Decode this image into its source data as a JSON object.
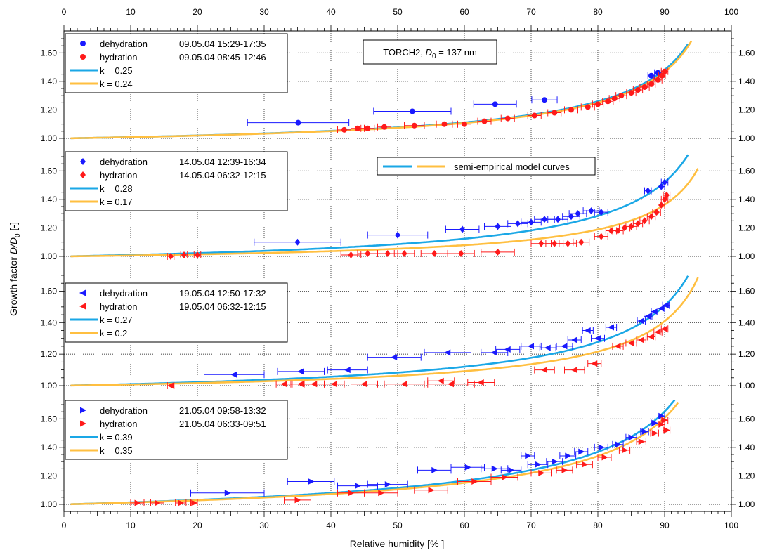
{
  "chart_data": {
    "type": "scatter",
    "xlabel": "Relative humidity [% ]",
    "ylabel_main": "Growth factor ",
    "ylabel_ratio": "D/D",
    "ylabel_sub": "0",
    "ylabel_unit": " [-]",
    "xlim": [
      0,
      100
    ],
    "x_ticks": [
      "0",
      "10",
      "20",
      "30",
      "40",
      "50",
      "60",
      "70",
      "80",
      "90",
      "100"
    ],
    "y_ticks": [
      "1.00",
      "1.20",
      "1.40",
      "1.60"
    ],
    "grid": true,
    "annotation": {
      "prefix": "TORCH2, ",
      "var": "D",
      "sub": "0",
      "suffix": " = 137 nm"
    },
    "model_legend_label": "semi-empirical model curves",
    "colors": {
      "dehydration": "#1a1aff",
      "hydration": "#ff1a1a",
      "curve1": "#1aa7e6",
      "curve2": "#ffbf40"
    },
    "panels": [
      {
        "ylim": [
          1.0,
          1.7
        ],
        "marker": "circle",
        "legend": [
          {
            "label": "dehydration",
            "date": "09.05.04 15:29-17:35"
          },
          {
            "label": "hydration",
            "date": "09.05.04 08:45-12:46"
          },
          {
            "label": "k = 0.25",
            "date": ""
          },
          {
            "label": "k = 0.24",
            "date": ""
          }
        ],
        "curves": [
          {
            "k": 0.25,
            "end_rh": 93.5
          },
          {
            "k": 0.24,
            "end_rh": 94
          }
        ],
        "dehydration": [
          {
            "x": 35.1,
            "y": 1.11,
            "xerr": 7.6
          },
          {
            "x": 52.2,
            "y": 1.19,
            "xerr": 5.8
          },
          {
            "x": 64.6,
            "y": 1.24,
            "xerr": 3.2
          },
          {
            "x": 72.0,
            "y": 1.27,
            "xerr": 1.9
          },
          {
            "x": 88.0,
            "y": 1.44,
            "xerr": 0.5
          },
          {
            "x": 89.0,
            "y": 1.46,
            "xerr": 0.5
          }
        ],
        "hydration": [
          {
            "x": 42.0,
            "y": 1.06,
            "xerr": 1.0
          },
          {
            "x": 44.0,
            "y": 1.07,
            "xerr": 1.0
          },
          {
            "x": 45.5,
            "y": 1.07,
            "xerr": 1.0
          },
          {
            "x": 48.0,
            "y": 1.08,
            "xerr": 1.0
          },
          {
            "x": 52.5,
            "y": 1.09,
            "xerr": 1.5
          },
          {
            "x": 57.0,
            "y": 1.1,
            "xerr": 1.2
          },
          {
            "x": 60.0,
            "y": 1.1,
            "xerr": 1.0
          },
          {
            "x": 63.0,
            "y": 1.12,
            "xerr": 1.0
          },
          {
            "x": 66.5,
            "y": 1.14,
            "xerr": 1.0
          },
          {
            "x": 70.5,
            "y": 1.16,
            "xerr": 1.0
          },
          {
            "x": 73.5,
            "y": 1.18,
            "xerr": 1.0
          },
          {
            "x": 76.0,
            "y": 1.2,
            "xerr": 1.0
          },
          {
            "x": 78.5,
            "y": 1.22,
            "xerr": 1.0
          },
          {
            "x": 80.0,
            "y": 1.24,
            "xerr": 0.8
          },
          {
            "x": 81.5,
            "y": 1.26,
            "xerr": 0.8
          },
          {
            "x": 82.5,
            "y": 1.28,
            "xerr": 0.8
          },
          {
            "x": 83.5,
            "y": 1.3,
            "xerr": 0.8
          },
          {
            "x": 85.0,
            "y": 1.32,
            "xerr": 0.7
          },
          {
            "x": 86.0,
            "y": 1.34,
            "xerr": 0.7
          },
          {
            "x": 87.0,
            "y": 1.36,
            "xerr": 0.7
          },
          {
            "x": 88.0,
            "y": 1.38,
            "xerr": 0.6
          },
          {
            "x": 89.0,
            "y": 1.41,
            "xerr": 0.6
          },
          {
            "x": 89.6,
            "y": 1.44,
            "xerr": 0.5
          },
          {
            "x": 90.0,
            "y": 1.47,
            "xerr": 0.5
          }
        ]
      },
      {
        "ylim": [
          1.0,
          1.7
        ],
        "marker": "diamond",
        "legend": [
          {
            "label": "dehydration",
            "date": "14.05.04 12:39-16:34"
          },
          {
            "label": "hydration",
            "date": "14.05.04 06:32-12:15"
          },
          {
            "label": "k = 0.28",
            "date": ""
          },
          {
            "label": "k = 0.17",
            "date": ""
          }
        ],
        "curves": [
          {
            "k": 0.28,
            "end_rh": 93.5
          },
          {
            "k": 0.17,
            "end_rh": 95
          }
        ],
        "dehydration": [
          {
            "x": 35.0,
            "y": 1.1,
            "xerr": 6.5
          },
          {
            "x": 50.0,
            "y": 1.15,
            "xerr": 4.5
          },
          {
            "x": 59.7,
            "y": 1.19,
            "xerr": 2.5
          },
          {
            "x": 65.0,
            "y": 1.21,
            "xerr": 2.0
          },
          {
            "x": 68.0,
            "y": 1.23,
            "xerr": 1.5
          },
          {
            "x": 70.0,
            "y": 1.24,
            "xerr": 1.5
          },
          {
            "x": 72.0,
            "y": 1.26,
            "xerr": 1.5
          },
          {
            "x": 74.0,
            "y": 1.26,
            "xerr": 1.5
          },
          {
            "x": 76.0,
            "y": 1.28,
            "xerr": 1.3
          },
          {
            "x": 77.0,
            "y": 1.3,
            "xerr": 1.3
          },
          {
            "x": 79.0,
            "y": 1.32,
            "xerr": 1.2
          },
          {
            "x": 80.5,
            "y": 1.31,
            "xerr": 1.0
          },
          {
            "x": 87.5,
            "y": 1.46,
            "xerr": 0.5
          },
          {
            "x": 89.5,
            "y": 1.49,
            "xerr": 0.5
          },
          {
            "x": 90.0,
            "y": 1.52,
            "xerr": 0.5
          }
        ],
        "hydration": [
          {
            "x": 16.0,
            "y": 1.0,
            "xerr": 0.5
          },
          {
            "x": 18.0,
            "y": 1.01,
            "xerr": 0.5
          },
          {
            "x": 20.0,
            "y": 1.01,
            "xerr": 0.5
          },
          {
            "x": 43.0,
            "y": 1.01,
            "xerr": 1.5
          },
          {
            "x": 45.5,
            "y": 1.02,
            "xerr": 1.5
          },
          {
            "x": 48.5,
            "y": 1.02,
            "xerr": 1.5
          },
          {
            "x": 51.0,
            "y": 1.02,
            "xerr": 1.5
          },
          {
            "x": 55.5,
            "y": 1.02,
            "xerr": 2.0
          },
          {
            "x": 59.5,
            "y": 1.02,
            "xerr": 2.0
          },
          {
            "x": 65.0,
            "y": 1.03,
            "xerr": 2.5
          },
          {
            "x": 71.5,
            "y": 1.09,
            "xerr": 1.5
          },
          {
            "x": 73.5,
            "y": 1.09,
            "xerr": 1.3
          },
          {
            "x": 75.5,
            "y": 1.09,
            "xerr": 1.3
          },
          {
            "x": 77.5,
            "y": 1.1,
            "xerr": 1.2
          },
          {
            "x": 80.5,
            "y": 1.14,
            "xerr": 1.0
          },
          {
            "x": 82.0,
            "y": 1.18,
            "xerr": 0.8
          },
          {
            "x": 83.0,
            "y": 1.18,
            "xerr": 0.8
          },
          {
            "x": 84.0,
            "y": 1.2,
            "xerr": 0.8
          },
          {
            "x": 85.0,
            "y": 1.21,
            "xerr": 0.8
          },
          {
            "x": 86.0,
            "y": 1.23,
            "xerr": 0.7
          },
          {
            "x": 87.0,
            "y": 1.25,
            "xerr": 0.7
          },
          {
            "x": 88.0,
            "y": 1.28,
            "xerr": 0.6
          },
          {
            "x": 88.8,
            "y": 1.31,
            "xerr": 0.6
          },
          {
            "x": 89.5,
            "y": 1.36,
            "xerr": 0.5
          },
          {
            "x": 90.0,
            "y": 1.4,
            "xerr": 0.5
          },
          {
            "x": 90.3,
            "y": 1.43,
            "xerr": 0.5
          }
        ]
      },
      {
        "ylim": [
          1.0,
          1.7
        ],
        "marker": "triangle-left",
        "legend": [
          {
            "label": "dehydration",
            "date": "19.05.04 12:50-17:32"
          },
          {
            "label": "hydration",
            "date": "19.05.04 06:32-12:15"
          },
          {
            "label": "k = 0.27",
            "date": ""
          },
          {
            "label": "k = 0.2",
            "date": ""
          }
        ],
        "curves": [
          {
            "k": 0.27,
            "end_rh": 93.5
          },
          {
            "k": 0.2,
            "end_rh": 95
          }
        ],
        "dehydration": [
          {
            "x": 25.5,
            "y": 1.07,
            "xerr": 4.5
          },
          {
            "x": 35.5,
            "y": 1.09,
            "xerr": 3.5
          },
          {
            "x": 42.5,
            "y": 1.1,
            "xerr": 3.0
          },
          {
            "x": 49.5,
            "y": 1.18,
            "xerr": 4.0
          },
          {
            "x": 57.5,
            "y": 1.21,
            "xerr": 3.5
          },
          {
            "x": 64.5,
            "y": 1.21,
            "xerr": 2.0
          },
          {
            "x": 66.5,
            "y": 1.23,
            "xerr": 1.8
          },
          {
            "x": 70.0,
            "y": 1.25,
            "xerr": 1.5
          },
          {
            "x": 72.5,
            "y": 1.24,
            "xerr": 1.2
          },
          {
            "x": 75.0,
            "y": 1.25,
            "xerr": 1.2
          },
          {
            "x": 76.5,
            "y": 1.29,
            "xerr": 1.0
          },
          {
            "x": 78.5,
            "y": 1.35,
            "xerr": 0.8
          },
          {
            "x": 80.0,
            "y": 1.3,
            "xerr": 1.0
          },
          {
            "x": 82.0,
            "y": 1.37,
            "xerr": 0.8
          },
          {
            "x": 86.5,
            "y": 1.41,
            "xerr": 0.6
          },
          {
            "x": 87.5,
            "y": 1.44,
            "xerr": 0.6
          },
          {
            "x": 88.5,
            "y": 1.47,
            "xerr": 0.5
          },
          {
            "x": 89.5,
            "y": 1.49,
            "xerr": 0.5
          },
          {
            "x": 90.2,
            "y": 1.51,
            "xerr": 0.5
          }
        ],
        "hydration": [
          {
            "x": 16.0,
            "y": 1.0,
            "xerr": 0.5
          },
          {
            "x": 33.0,
            "y": 1.01,
            "xerr": 1.2
          },
          {
            "x": 35.5,
            "y": 1.01,
            "xerr": 1.5
          },
          {
            "x": 37.5,
            "y": 1.01,
            "xerr": 1.5
          },
          {
            "x": 40.5,
            "y": 1.01,
            "xerr": 1.5
          },
          {
            "x": 45.0,
            "y": 1.01,
            "xerr": 2.0
          },
          {
            "x": 51.0,
            "y": 1.01,
            "xerr": 3.0
          },
          {
            "x": 58.0,
            "y": 1.01,
            "xerr": 3.5
          },
          {
            "x": 56.5,
            "y": 1.03,
            "xerr": 2.0
          },
          {
            "x": 62.5,
            "y": 1.02,
            "xerr": 2.0
          },
          {
            "x": 72.0,
            "y": 1.1,
            "xerr": 1.5
          },
          {
            "x": 76.5,
            "y": 1.1,
            "xerr": 1.5
          },
          {
            "x": 79.5,
            "y": 1.14,
            "xerr": 1.0
          },
          {
            "x": 83.0,
            "y": 1.25,
            "xerr": 0.8
          },
          {
            "x": 85.0,
            "y": 1.27,
            "xerr": 0.8
          },
          {
            "x": 86.5,
            "y": 1.29,
            "xerr": 0.7
          },
          {
            "x": 88.0,
            "y": 1.31,
            "xerr": 0.6
          },
          {
            "x": 89.0,
            "y": 1.34,
            "xerr": 0.6
          },
          {
            "x": 90.0,
            "y": 1.36,
            "xerr": 0.5
          }
        ]
      },
      {
        "ylim": [
          1.0,
          1.7
        ],
        "marker": "triangle-right",
        "legend": [
          {
            "label": "dehydration",
            "date": "21.05.04 09:58-13:32"
          },
          {
            "label": "hydration",
            "date": "21.05.04 06:33-09:51"
          },
          {
            "label": "k = 0.39",
            "date": ""
          },
          {
            "label": "k = 0.35",
            "date": ""
          }
        ],
        "curves": [
          {
            "k": 0.39,
            "end_rh": 91.5
          },
          {
            "k": 0.35,
            "end_rh": 92
          }
        ],
        "dehydration": [
          {
            "x": 24.5,
            "y": 1.08,
            "xerr": 5.5
          },
          {
            "x": 37.0,
            "y": 1.16,
            "xerr": 3.5
          },
          {
            "x": 44.0,
            "y": 1.13,
            "xerr": 3.0
          },
          {
            "x": 48.5,
            "y": 1.14,
            "xerr": 3.0
          },
          {
            "x": 55.5,
            "y": 1.24,
            "xerr": 2.5
          },
          {
            "x": 60.5,
            "y": 1.26,
            "xerr": 2.5
          },
          {
            "x": 64.5,
            "y": 1.25,
            "xerr": 2.0
          },
          {
            "x": 67.0,
            "y": 1.24,
            "xerr": 1.5
          },
          {
            "x": 69.5,
            "y": 1.34,
            "xerr": 1.0
          },
          {
            "x": 71.0,
            "y": 1.28,
            "xerr": 1.5
          },
          {
            "x": 73.5,
            "y": 1.3,
            "xerr": 1.2
          },
          {
            "x": 75.5,
            "y": 1.34,
            "xerr": 1.2
          },
          {
            "x": 77.5,
            "y": 1.37,
            "xerr": 1.0
          },
          {
            "x": 80.5,
            "y": 1.4,
            "xerr": 1.0
          },
          {
            "x": 83.0,
            "y": 1.42,
            "xerr": 0.8
          },
          {
            "x": 85.0,
            "y": 1.47,
            "xerr": 0.8
          },
          {
            "x": 87.0,
            "y": 1.51,
            "xerr": 0.6
          },
          {
            "x": 88.5,
            "y": 1.57,
            "xerr": 0.5
          },
          {
            "x": 89.5,
            "y": 1.62,
            "xerr": 0.5
          }
        ],
        "hydration": [
          {
            "x": 11.0,
            "y": 1.01,
            "xerr": 1.0
          },
          {
            "x": 14.0,
            "y": 1.01,
            "xerr": 1.0
          },
          {
            "x": 17.5,
            "y": 1.01,
            "xerr": 0.8
          },
          {
            "x": 19.5,
            "y": 1.01,
            "xerr": 0.5
          },
          {
            "x": 35.0,
            "y": 1.03,
            "xerr": 2.0
          },
          {
            "x": 43.0,
            "y": 1.08,
            "xerr": 2.0
          },
          {
            "x": 47.5,
            "y": 1.08,
            "xerr": 2.5
          },
          {
            "x": 55.0,
            "y": 1.1,
            "xerr": 2.5
          },
          {
            "x": 61.5,
            "y": 1.16,
            "xerr": 2.5
          },
          {
            "x": 66.0,
            "y": 1.19,
            "xerr": 2.0
          },
          {
            "x": 71.5,
            "y": 1.22,
            "xerr": 1.5
          },
          {
            "x": 75.0,
            "y": 1.24,
            "xerr": 1.2
          },
          {
            "x": 78.0,
            "y": 1.28,
            "xerr": 1.2
          },
          {
            "x": 81.0,
            "y": 1.33,
            "xerr": 1.0
          },
          {
            "x": 84.0,
            "y": 1.38,
            "xerr": 0.8
          },
          {
            "x": 86.5,
            "y": 1.44,
            "xerr": 0.7
          },
          {
            "x": 88.5,
            "y": 1.5,
            "xerr": 0.6
          },
          {
            "x": 89.5,
            "y": 1.56,
            "xerr": 0.5
          },
          {
            "x": 90.0,
            "y": 1.59,
            "xerr": 0.5
          },
          {
            "x": 90.3,
            "y": 1.52,
            "xerr": 0.5
          }
        ]
      }
    ]
  }
}
